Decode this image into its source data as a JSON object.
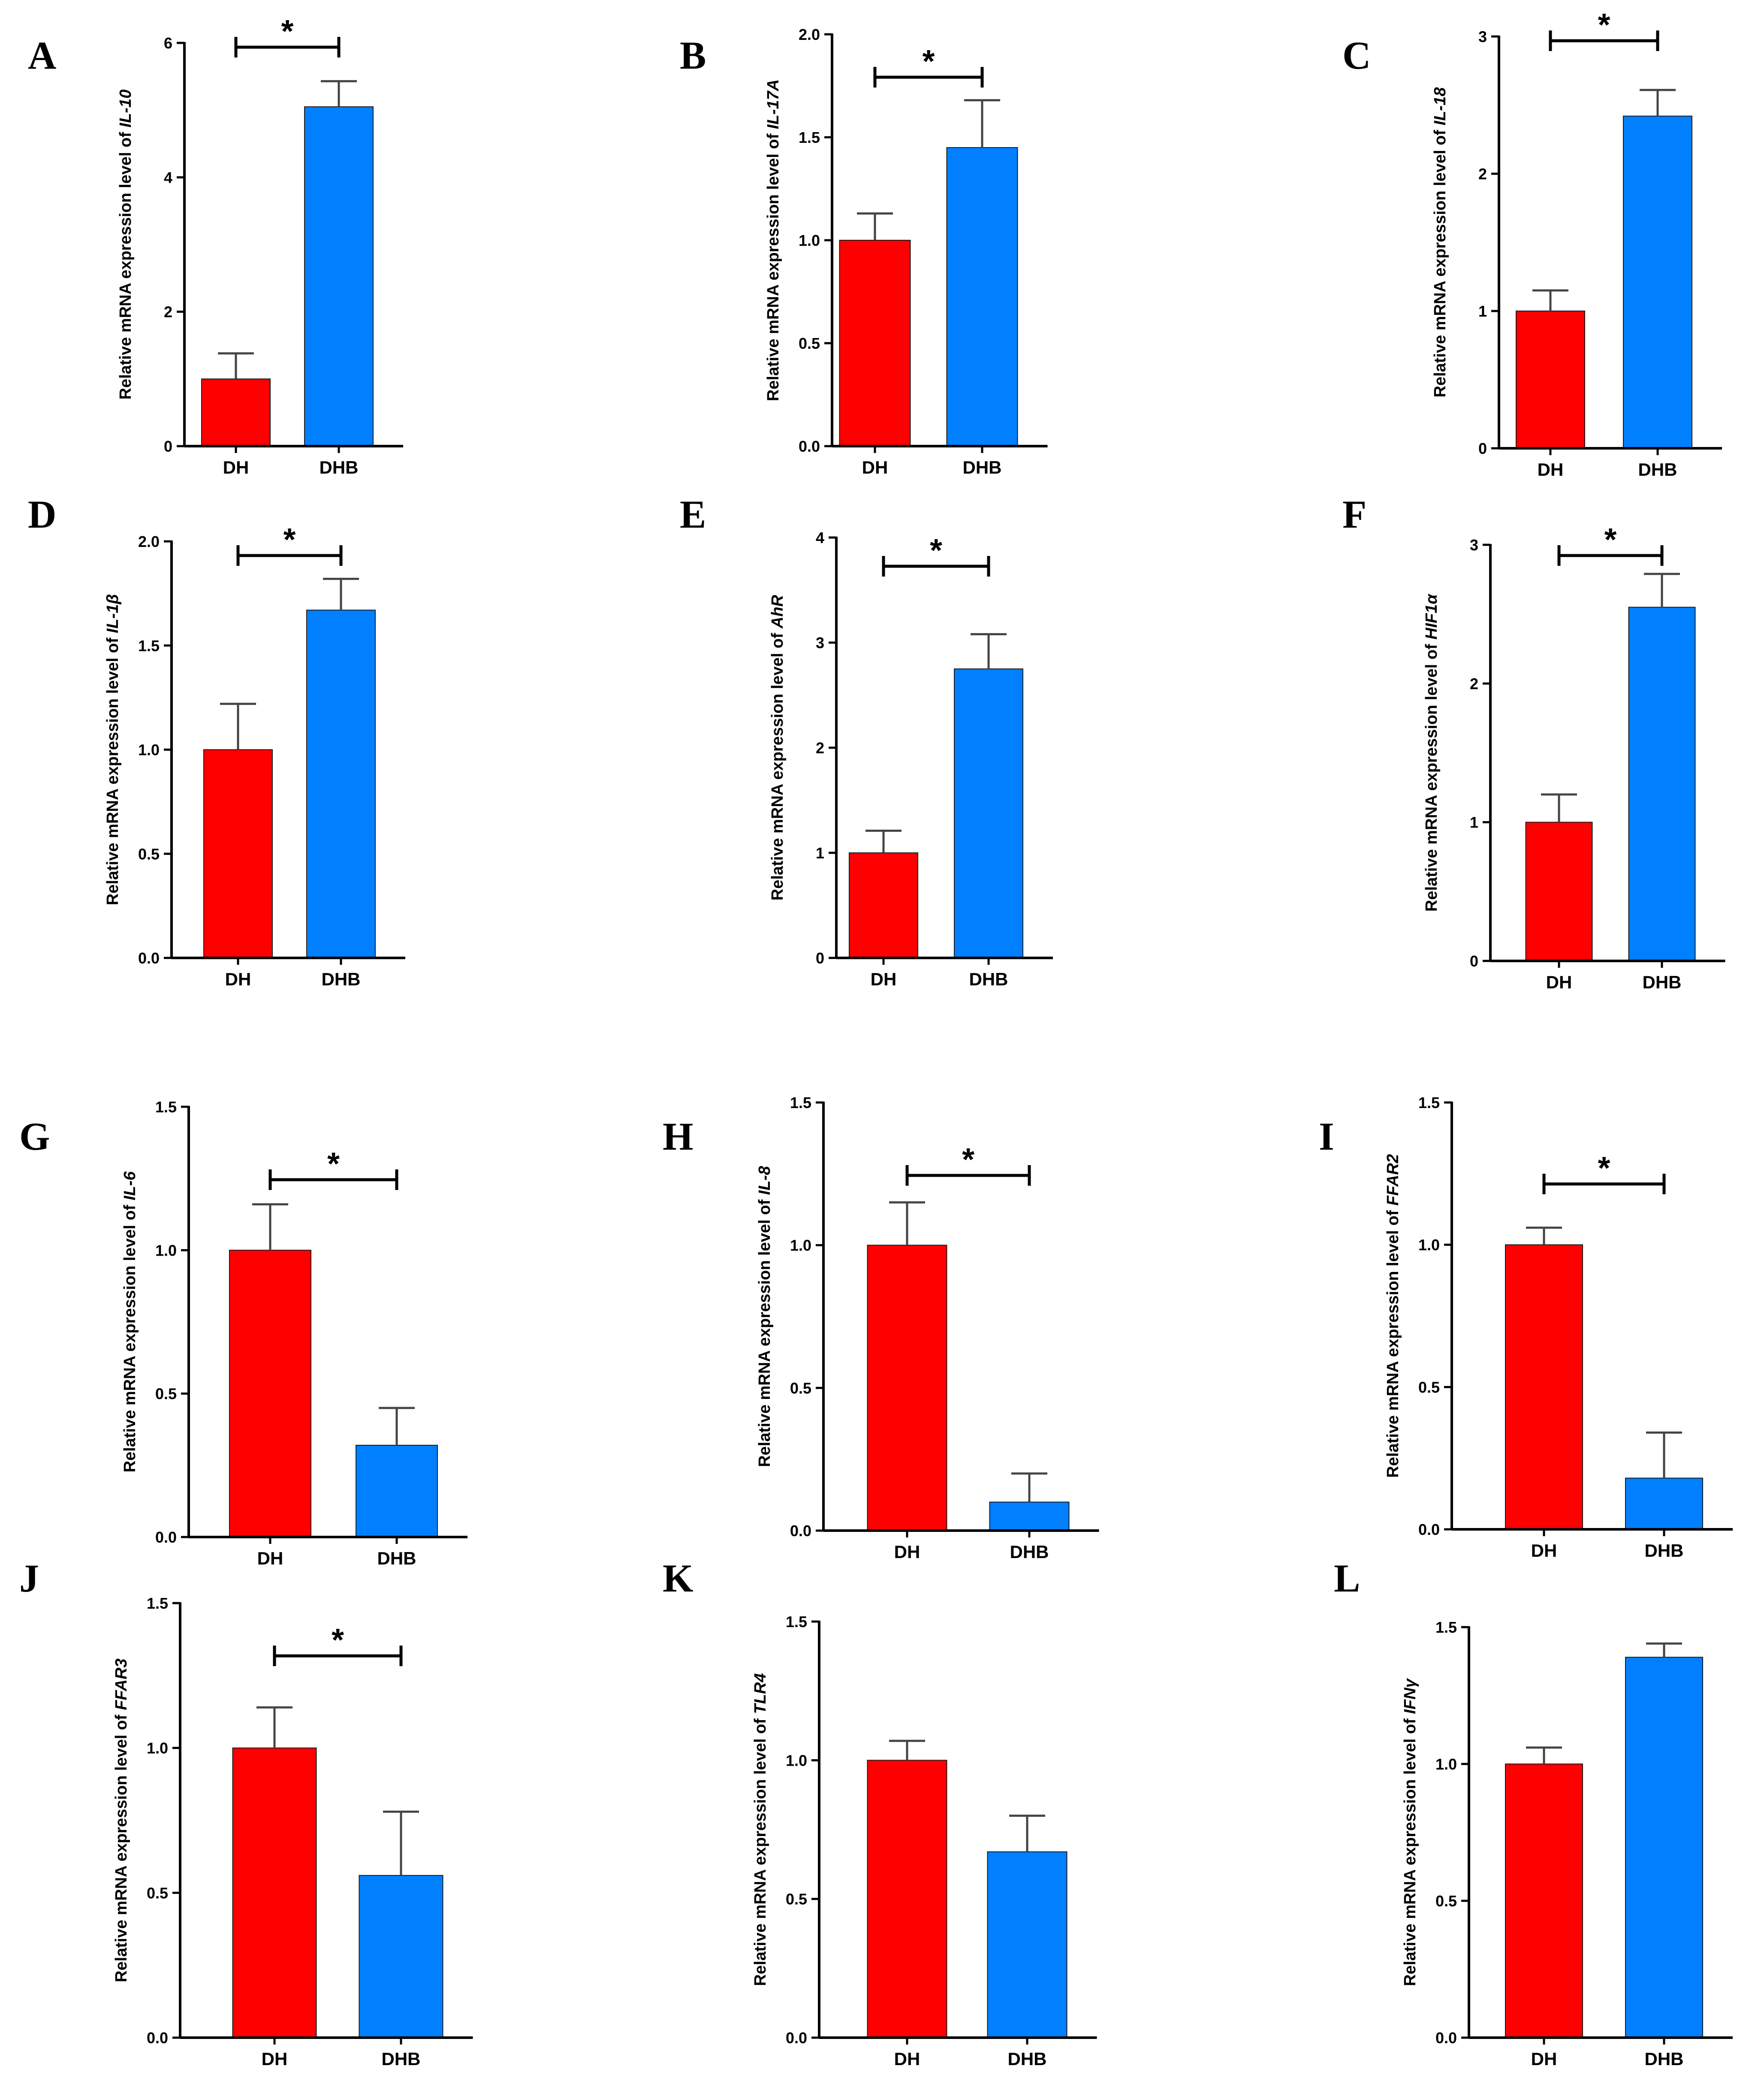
{
  "colors": {
    "DH": "#ff0000",
    "DHB": "#0080ff",
    "axis": "#000000"
  },
  "axis_title_prefix": "Relative mRNA expression level of",
  "chart_data": [
    {
      "type": "bar",
      "panel": "A",
      "gene": "IL-10",
      "categories": [
        "DH",
        "DHB"
      ],
      "values": [
        1.0,
        5.05
      ],
      "errors": [
        0.38,
        0.38
      ],
      "ylim": [
        0,
        6
      ],
      "yticks": [
        "0",
        "2",
        "4",
        "6"
      ],
      "significance": "*"
    },
    {
      "type": "bar",
      "panel": "B",
      "gene": "IL-17A",
      "categories": [
        "DH",
        "DHB"
      ],
      "values": [
        1.0,
        1.45
      ],
      "errors": [
        0.13,
        0.23
      ],
      "ylim": [
        0,
        2
      ],
      "yticks": [
        "0.0",
        "0.5",
        "1.0",
        "1.5",
        "2.0"
      ],
      "significance": "*"
    },
    {
      "type": "bar",
      "panel": "C",
      "gene": "IL-18",
      "categories": [
        "DH",
        "DHB"
      ],
      "values": [
        1.0,
        2.42
      ],
      "errors": [
        0.15,
        0.19
      ],
      "ylim": [
        0,
        3
      ],
      "yticks": [
        "0",
        "1",
        "2",
        "3"
      ],
      "significance": "*"
    },
    {
      "type": "bar",
      "panel": "D",
      "gene": "IL-1β",
      "categories": [
        "DH",
        "DHB"
      ],
      "values": [
        1.0,
        1.67
      ],
      "errors": [
        0.22,
        0.15
      ],
      "ylim": [
        0,
        2
      ],
      "yticks": [
        "0.0",
        "0.5",
        "1.0",
        "1.5",
        "2.0"
      ],
      "significance": "*"
    },
    {
      "type": "bar",
      "panel": "E",
      "gene": "AhR",
      "categories": [
        "DH",
        "DHB"
      ],
      "values": [
        1.0,
        2.75
      ],
      "errors": [
        0.21,
        0.33
      ],
      "ylim": [
        0,
        4
      ],
      "yticks": [
        "0",
        "1",
        "2",
        "3",
        "4"
      ],
      "significance": "*"
    },
    {
      "type": "bar",
      "panel": "F",
      "gene": "HIF1α",
      "categories": [
        "DH",
        "DHB"
      ],
      "values": [
        1.0,
        2.55
      ],
      "errors": [
        0.2,
        0.24
      ],
      "ylim": [
        0,
        3
      ],
      "yticks": [
        "0",
        "1",
        "2",
        "3"
      ],
      "significance": "*"
    },
    {
      "type": "bar",
      "panel": "G",
      "gene": "IL-6",
      "categories": [
        "DH",
        "DHB"
      ],
      "values": [
        1.0,
        0.32
      ],
      "errors": [
        0.16,
        0.13
      ],
      "ylim": [
        0,
        1.5
      ],
      "yticks": [
        "0.0",
        "0.5",
        "1.0",
        "1.5"
      ],
      "significance": "*"
    },
    {
      "type": "bar",
      "panel": "H",
      "gene": "IL-8",
      "categories": [
        "DH",
        "DHB"
      ],
      "values": [
        1.0,
        0.1
      ],
      "errors": [
        0.15,
        0.1
      ],
      "ylim": [
        0,
        1.5
      ],
      "yticks": [
        "0.0",
        "0.5",
        "1.0",
        "1.5"
      ],
      "significance": "*"
    },
    {
      "type": "bar",
      "panel": "I",
      "gene": "FFAR2",
      "categories": [
        "DH",
        "DHB"
      ],
      "values": [
        1.0,
        0.18
      ],
      "errors": [
        0.06,
        0.16
      ],
      "ylim": [
        0,
        1.5
      ],
      "yticks": [
        "0.0",
        "0.5",
        "1.0",
        "1.5"
      ],
      "significance": "*"
    },
    {
      "type": "bar",
      "panel": "J",
      "gene": "FFAR3",
      "categories": [
        "DH",
        "DHB"
      ],
      "values": [
        1.0,
        0.56
      ],
      "errors": [
        0.14,
        0.22
      ],
      "ylim": [
        0,
        1.5
      ],
      "yticks": [
        "0.0",
        "0.5",
        "1.0",
        "1.5"
      ],
      "significance": "*"
    },
    {
      "type": "bar",
      "panel": "K",
      "gene": "TLR4",
      "categories": [
        "DH",
        "DHB"
      ],
      "values": [
        1.0,
        0.67
      ],
      "errors": [
        0.07,
        0.13
      ],
      "ylim": [
        0,
        1.5
      ],
      "yticks": [
        "0.0",
        "0.5",
        "1.0",
        "1.5"
      ],
      "significance": ""
    },
    {
      "type": "bar",
      "panel": "L",
      "gene": "IFNγ",
      "categories": [
        "DH",
        "DHB"
      ],
      "values": [
        1.0,
        1.39
      ],
      "errors": [
        0.06,
        0.05
      ],
      "ylim": [
        0,
        1.5
      ],
      "yticks": [
        "0.0",
        "0.5",
        "1.0",
        "1.5"
      ],
      "significance": ""
    }
  ]
}
